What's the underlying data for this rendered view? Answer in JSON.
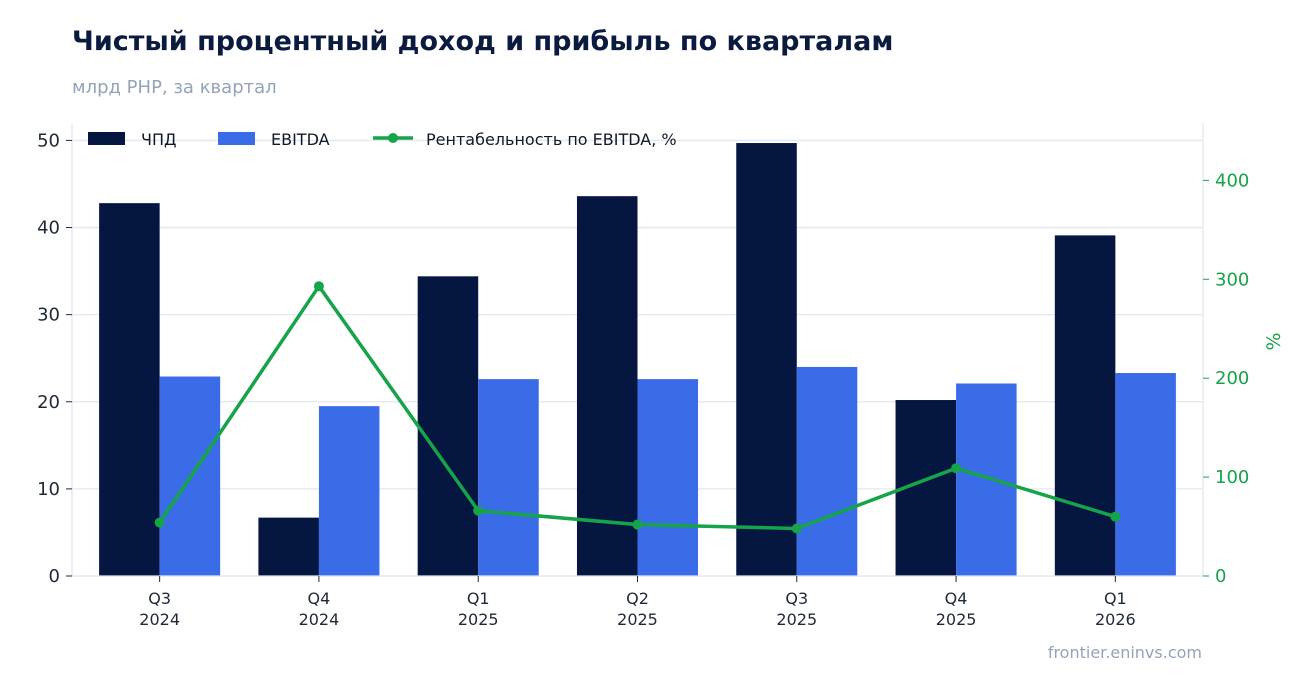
{
  "header": {
    "title": "Чистый процентный доход и прибыль по кварталам",
    "subtitle": "млрд РНР, за квартал"
  },
  "footer": {
    "source": "frontier.eninvs.com"
  },
  "colors": {
    "npd": "#051641",
    "ebitda": "#3b6ce8",
    "margin": "#16a34a",
    "grid": "#e2e8f0"
  },
  "chart_data": {
    "type": "bar",
    "categories": [
      [
        "Q3",
        "2024"
      ],
      [
        "Q4",
        "2024"
      ],
      [
        "Q1",
        "2025"
      ],
      [
        "Q2",
        "2025"
      ],
      [
        "Q3",
        "2025"
      ],
      [
        "Q4",
        "2025"
      ],
      [
        "Q1",
        "2026"
      ]
    ],
    "series": [
      {
        "name": "ЧПД",
        "type": "bar",
        "axis": "left",
        "values": [
          42.8,
          6.7,
          34.4,
          43.6,
          49.7,
          20.2,
          39.1
        ]
      },
      {
        "name": "EBITDA",
        "type": "bar",
        "axis": "left",
        "values": [
          22.9,
          19.5,
          22.6,
          22.6,
          24.0,
          22.1,
          23.3
        ]
      },
      {
        "name": "Рентабельность по EBITDA, %",
        "type": "line",
        "axis": "right",
        "values": [
          54,
          293,
          66,
          52,
          48,
          109,
          60
        ]
      }
    ],
    "y_left": {
      "ylim": [
        0,
        52
      ],
      "ticks": [
        0,
        10,
        20,
        30,
        40,
        50
      ]
    },
    "y_right": {
      "ylim": [
        0,
        458
      ],
      "ticks": [
        0,
        100,
        200,
        300,
        400
      ],
      "label": "%"
    },
    "grid": true,
    "legend": "top-left"
  }
}
